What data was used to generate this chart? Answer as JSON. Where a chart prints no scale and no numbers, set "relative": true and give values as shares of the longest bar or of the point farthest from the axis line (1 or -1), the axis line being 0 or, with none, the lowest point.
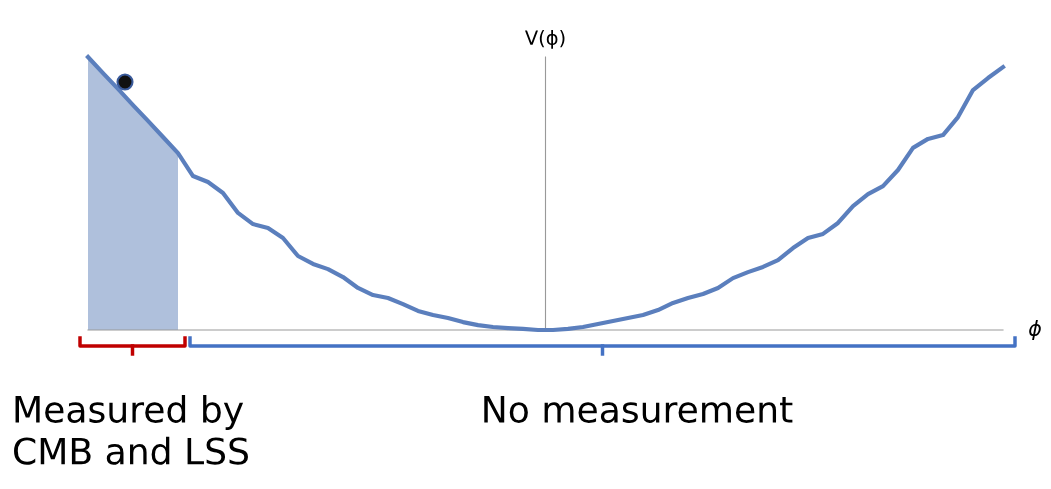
{
  "chart_data": {
    "type": "line",
    "relative": true,
    "xlabel": "ϕ",
    "ylabel": "V(ϕ)",
    "categories": [
      null,
      null,
      null,
      null,
      null,
      null,
      null,
      null,
      null,
      null,
      null,
      null,
      null,
      null,
      null,
      null,
      null,
      null,
      null,
      null,
      null,
      null,
      null,
      null,
      null,
      null,
      null,
      null,
      null,
      null,
      null,
      null,
      null,
      null,
      null,
      null,
      null,
      null,
      null,
      null,
      null,
      null,
      null,
      null,
      null,
      null,
      null,
      null,
      null,
      null,
      null,
      null,
      null,
      null,
      null,
      null,
      null,
      null,
      null,
      null,
      null,
      null
    ],
    "series": [
      {
        "type": "area",
        "color": "#afc0dc",
        "values": [
          1.0,
          0.941,
          0.883,
          0.824,
          0.766,
          0.707,
          0.648,
          null,
          null,
          null,
          null,
          null,
          null,
          null,
          null,
          null,
          null,
          null,
          null,
          null,
          null,
          null,
          null,
          null,
          null,
          null,
          null,
          null,
          null,
          null,
          null,
          null,
          null,
          null,
          null,
          null,
          null,
          null,
          null,
          null,
          null,
          null,
          null,
          null,
          null,
          null,
          null,
          null,
          null,
          null,
          null,
          null,
          null,
          null,
          null,
          null,
          null,
          null,
          null,
          null,
          null,
          null
        ]
      },
      {
        "color": "#5b7fbd",
        "values": [
          1.0,
          0.941,
          0.883,
          0.824,
          0.766,
          0.707,
          0.648,
          0.564,
          0.542,
          0.502,
          0.429,
          0.388,
          0.374,
          0.337,
          0.271,
          0.242,
          0.223,
          0.194,
          0.154,
          0.128,
          0.117,
          0.095,
          0.07,
          0.055,
          0.044,
          0.029,
          0.018,
          0.011,
          0.007,
          0.004,
          0,
          0,
          0.004,
          0.011,
          0.022,
          0.033,
          0.044,
          0.055,
          0.073,
          0.099,
          0.117,
          0.132,
          0.154,
          0.19,
          0.212,
          0.231,
          0.256,
          0.3,
          0.337,
          0.352,
          0.392,
          0.454,
          0.498,
          0.527,
          0.586,
          0.667,
          0.7,
          0.714,
          0.78,
          0.879,
          0.923,
          0.963
        ]
      }
    ],
    "annotations": [
      "Measured by\nCMB and LSS",
      "No measurement"
    ],
    "legend": false,
    "marker": "none",
    "line_style": "solid"
  }
}
